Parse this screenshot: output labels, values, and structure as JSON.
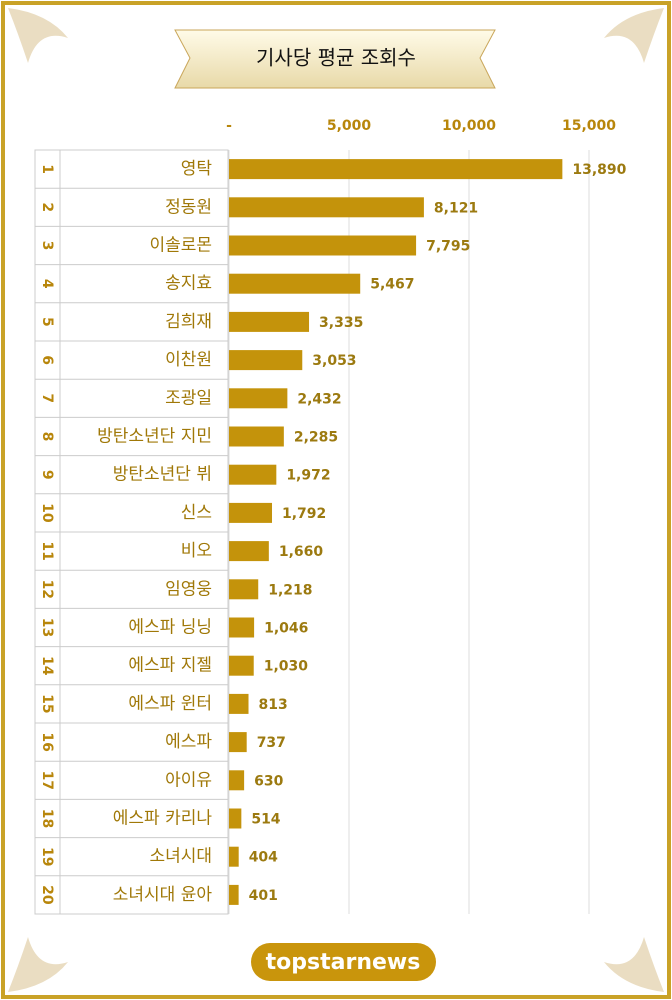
{
  "chart_data": {
    "type": "bar",
    "orientation": "horizontal",
    "title": "기사당 평균 조회수",
    "logo": "topstarnews",
    "ranks": [
      "1",
      "2",
      "3",
      "4",
      "5",
      "6",
      "7",
      "8",
      "9",
      "10",
      "11",
      "12",
      "13",
      "14",
      "15",
      "16",
      "17",
      "18",
      "19",
      "20"
    ],
    "categories": [
      "영탁",
      "정동원",
      "이솔로몬",
      "송지효",
      "김희재",
      "이찬원",
      "조광일",
      "방탄소년단 지민",
      "방탄소년단 뷔",
      "신스",
      "비오",
      "임영웅",
      "에스파 닝닝",
      "에스파 지젤",
      "에스파 윈터",
      "에스파",
      "아이유",
      "에스파 카리나",
      "소녀시대",
      "소녀시대 윤아"
    ],
    "values": [
      13890,
      8121,
      7795,
      5467,
      3335,
      3053,
      2432,
      2285,
      1972,
      1792,
      1660,
      1218,
      1046,
      1030,
      813,
      737,
      630,
      514,
      404,
      401
    ],
    "value_labels": [
      "13,890",
      "8,121",
      "7,795",
      "5,467",
      "3,335",
      "3,053",
      "2,432",
      "2,285",
      "1,972",
      "1,792",
      "1,660",
      "1,218",
      "1,046",
      "1,030",
      "813",
      "737",
      "630",
      "514",
      "404",
      "401"
    ],
    "color": "#c4930b",
    "xlim": [
      0,
      15000
    ],
    "xticks": [
      {
        "value": 0,
        "label": "-"
      },
      {
        "value": 5000,
        "label": "5,000"
      },
      {
        "value": 10000,
        "label": "10,000"
      },
      {
        "value": 15000,
        "label": "15,000"
      }
    ],
    "grid": true
  }
}
